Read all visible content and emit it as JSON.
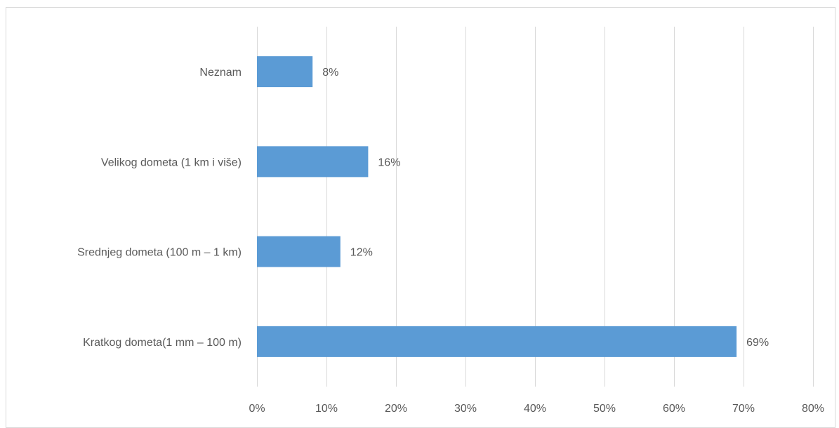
{
  "chart_data": {
    "type": "bar",
    "orientation": "horizontal",
    "categories": [
      "Neznam",
      "Velikog dometa (1 km i više)",
      "Srednjeg dometa (100 m – 1 km)",
      "Kratkog dometa(1 mm – 100 m)"
    ],
    "values": [
      8,
      16,
      12,
      69
    ],
    "data_labels": [
      "8%",
      "16%",
      "12%",
      "69%"
    ],
    "title": "",
    "xlabel": "",
    "ylabel": "",
    "xlim": [
      0,
      80
    ],
    "x_ticks": [
      0,
      10,
      20,
      30,
      40,
      50,
      60,
      70,
      80
    ],
    "x_tick_labels": [
      "0%",
      "10%",
      "20%",
      "30%",
      "40%",
      "50%",
      "60%",
      "70%",
      "80%"
    ],
    "grid": "vertical",
    "legend": "none",
    "bar_color": "#5b9bd5",
    "grid_color": "#d9d9d9",
    "text_color": "#595959"
  }
}
